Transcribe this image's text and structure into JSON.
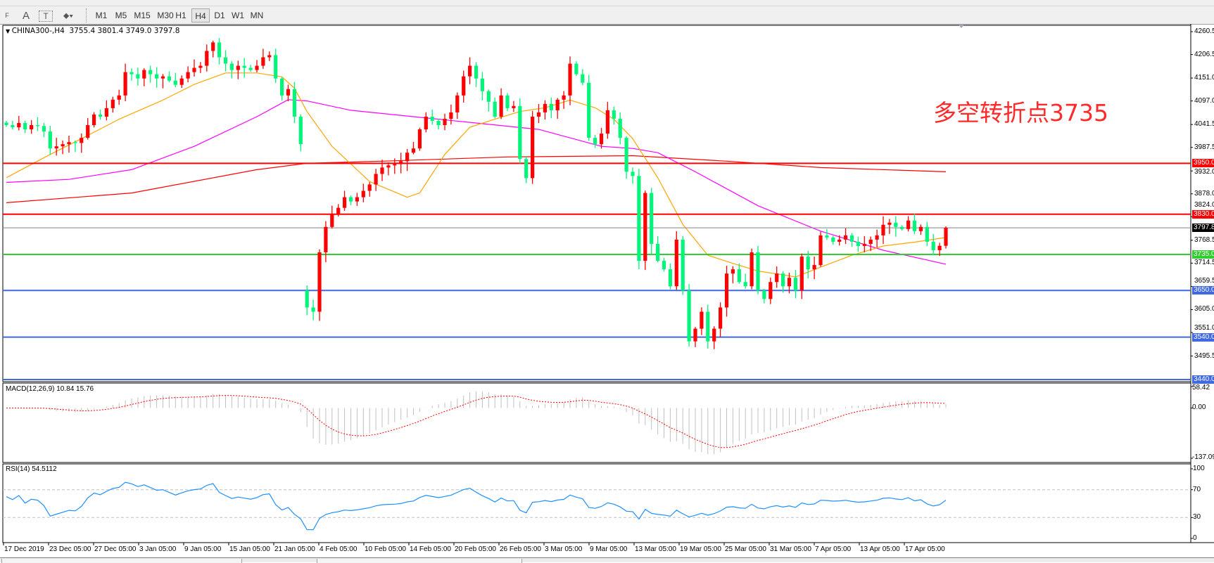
{
  "toolbar": {
    "tools": {
      "periods_grid": "F",
      "text": "A",
      "text_label": "T"
    },
    "timeframes": [
      "M1",
      "M5",
      "M15",
      "M30",
      "H1",
      "H4",
      "D1",
      "W1",
      "MN"
    ],
    "active_timeframe": "H4"
  },
  "chart": {
    "header": "CHINA300-,H4  3755.4 3801.4 3749.0 3797.8",
    "annotation": "多空转折点3735",
    "macd_title": "MACD(12,26,9) 10.84 15.76",
    "rsi_title": "RSI(14) 54.5112"
  },
  "chart_data": {
    "type": "candlestick",
    "symbol": "CHINA300-",
    "timeframe": "H4",
    "last_bar": {
      "open": 3755.4,
      "high": 3801.4,
      "low": 3749.0,
      "close": 3797.8
    },
    "colors": {
      "up": "#ff0000",
      "down": "#00f57a",
      "ma_fast": "#ffa500",
      "ma_mid": "#ff00ff",
      "ma_slow": "#ff0000",
      "macd_hist": "#c0c0c0",
      "macd_signal": "#ff0000",
      "rsi": "#1e90ff"
    },
    "price_axis": {
      "min": 3440.0,
      "max": 4260.5,
      "ticks": [
        "4260.5",
        "4206.5",
        "4151.0",
        "4097.0",
        "4041.5",
        "3987.5",
        "3932.0",
        "3878.0",
        "3824.0",
        "3768.5",
        "3714.5",
        "3659.5",
        "3605.0",
        "3551.0",
        "3495.5"
      ]
    },
    "closes": [
      4040,
      4035,
      4045,
      4030,
      4040,
      4038,
      4025,
      3985,
      3990,
      3995,
      4000,
      3998,
      4010,
      4040,
      4065,
      4060,
      4080,
      4100,
      4110,
      4165,
      4160,
      4150,
      4170,
      4160,
      4150,
      4155,
      4145,
      4135,
      4150,
      4165,
      4175,
      4180,
      4215,
      4235,
      4200,
      4185,
      4170,
      4180,
      4175,
      4170,
      4180,
      4200,
      4205,
      4150,
      4110,
      4125,
      4060,
      3995,
      3610,
      3600,
      3740,
      3800,
      3830,
      3845,
      3870,
      3860,
      3870,
      3885,
      3900,
      3925,
      3940,
      3945,
      3948,
      3955,
      3975,
      3985,
      4030,
      4060,
      4050,
      4040,
      4055,
      4070,
      4110,
      4155,
      4180,
      4150,
      4120,
      4095,
      4060,
      4110,
      4080,
      4085,
      3960,
      3915,
      4060,
      4070,
      4090,
      4075,
      4100,
      4110,
      4185,
      4160,
      4140,
      4010,
      3995,
      4020,
      4075,
      4055,
      4010,
      3930,
      3920,
      3720,
      3880,
      3760,
      3720,
      3700,
      3660,
      3770,
      3650,
      3530,
      3560,
      3600,
      3530,
      3560,
      3610,
      3690,
      3700,
      3670,
      3660,
      3740,
      3650,
      3630,
      3670,
      3690,
      3660,
      3680,
      3650,
      3730,
      3700,
      3710,
      3780,
      3775,
      3765,
      3770,
      3780,
      3765,
      3755,
      3760,
      3770,
      3780,
      3805,
      3810,
      3800,
      3795,
      3815,
      3790,
      3800,
      3765,
      3745,
      3755.4,
      3797.8
    ],
    "open_overrides": {
      "48": 3650
    },
    "ma_fast": [
      [
        0,
        3916
      ],
      [
        7,
        3971
      ],
      [
        12,
        4008
      ],
      [
        18,
        4054
      ],
      [
        25,
        4099
      ],
      [
        30,
        4136
      ],
      [
        35,
        4163
      ],
      [
        40,
        4163
      ],
      [
        44,
        4154
      ],
      [
        46,
        4127
      ],
      [
        48,
        4072
      ],
      [
        52,
        3990
      ],
      [
        58,
        3907
      ],
      [
        64,
        3870
      ],
      [
        66,
        3880
      ],
      [
        70,
        3971
      ],
      [
        74,
        4035
      ],
      [
        78,
        4054
      ],
      [
        82,
        4072
      ],
      [
        86,
        4081
      ],
      [
        90,
        4099
      ],
      [
        94,
        4081
      ],
      [
        97,
        4054
      ],
      [
        100,
        4008
      ],
      [
        104,
        3916
      ],
      [
        108,
        3806
      ],
      [
        112,
        3733
      ],
      [
        116,
        3714
      ],
      [
        120,
        3696
      ],
      [
        124,
        3687
      ],
      [
        126,
        3682
      ],
      [
        130,
        3705
      ],
      [
        135,
        3733
      ],
      [
        140,
        3755
      ],
      [
        145,
        3764
      ],
      [
        150,
        3775
      ]
    ],
    "ma_mid": [
      [
        0,
        3905
      ],
      [
        10,
        3912
      ],
      [
        20,
        3935
      ],
      [
        30,
        3990
      ],
      [
        40,
        4060
      ],
      [
        45,
        4100
      ],
      [
        48,
        4097
      ],
      [
        55,
        4075
      ],
      [
        65,
        4060
      ],
      [
        75,
        4045
      ],
      [
        85,
        4030
      ],
      [
        95,
        3990
      ],
      [
        100,
        3985
      ],
      [
        104,
        3975
      ],
      [
        110,
        3930
      ],
      [
        120,
        3850
      ],
      [
        130,
        3790
      ],
      [
        140,
        3745
      ],
      [
        150,
        3712
      ]
    ],
    "ma_slow": [
      [
        0,
        3857
      ],
      [
        20,
        3880
      ],
      [
        40,
        3935
      ],
      [
        48,
        3950
      ],
      [
        60,
        3955
      ],
      [
        80,
        3965
      ],
      [
        100,
        3968
      ],
      [
        115,
        3955
      ],
      [
        130,
        3940
      ],
      [
        150,
        3930
      ]
    ],
    "levels": [
      {
        "price": 3950.0,
        "label": "3950.0",
        "color": "#ff0000"
      },
      {
        "price": 3830.0,
        "label": "3830.0",
        "color": "#ff0000"
      },
      {
        "price": 3797.8,
        "label": "3797.8",
        "color": "#808080",
        "label_bg": "#000000"
      },
      {
        "price": 3735.0,
        "label": "3735.0",
        "color": "#32cd32"
      },
      {
        "price": 3650.0,
        "label": "3650.0",
        "color": "#4169e1"
      },
      {
        "price": 3540.0,
        "label": "3540.0",
        "color": "#4169e1"
      },
      {
        "price": 3440.0,
        "label": "3440.0",
        "color": "#4169e1"
      }
    ],
    "macd": {
      "fast": 12,
      "slow": 26,
      "signal": 9,
      "main": 10.84,
      "signal_value": 15.76,
      "axis": {
        "max": 58.42,
        "min": -137.09,
        "ticks": [
          "58.42",
          "0.00",
          "-137.09"
        ]
      }
    },
    "rsi": {
      "period": 14,
      "value": 54.5112,
      "axis_ticks": [
        "100",
        "70",
        "30",
        "0"
      ],
      "levels": [
        70,
        30
      ]
    },
    "time_labels": [
      "17 Dec 2019",
      "23 Dec 05:00",
      "27 Dec 05:00",
      "3 Jan 05:00",
      "9 Jan 05:00",
      "15 Jan 05:00",
      "21 Jan 05:00",
      "4 Feb 05:00",
      "10 Feb 05:00",
      "14 Feb 05:00",
      "20 Feb 05:00",
      "26 Feb 05:00",
      "3 Mar 05:00",
      "9 Mar 05:00",
      "13 Mar 05:00",
      "19 Mar 05:00",
      "25 Mar 05:00",
      "31 Mar 05:00",
      "7 Apr 05:00",
      "13 Apr 05:00",
      "17 Apr 05:00"
    ]
  }
}
